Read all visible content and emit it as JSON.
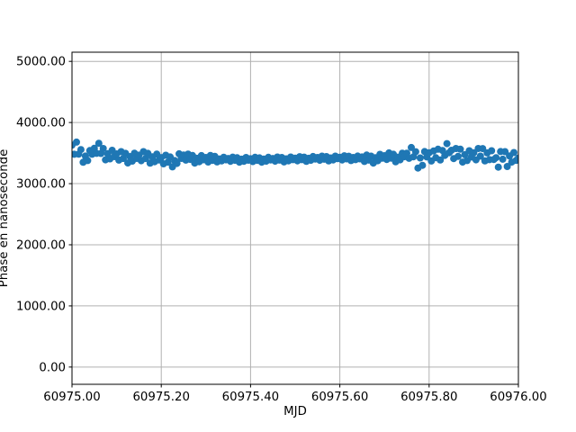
{
  "figure": {
    "background_color": "#ffffff",
    "title": ""
  },
  "chart_data": {
    "type": "scatter",
    "title": "",
    "xlabel": "MJD",
    "ylabel": "Phase en nanoseconde",
    "legend": null,
    "grid": true,
    "grid_color": "#b0b0b0",
    "spine_color": "#000000",
    "marker_color": "#1f77b4",
    "marker_radius_px": 4,
    "xlim": [
      60975.0,
      60976.0
    ],
    "ylim": [
      -282,
      5150
    ],
    "xticks": {
      "values": [
        60975.0,
        60975.2,
        60975.4,
        60975.6,
        60975.8,
        60976.0
      ],
      "labels": [
        "60975.00",
        "60975.20",
        "60975.40",
        "60975.60",
        "60975.80",
        "60976.00"
      ]
    },
    "yticks": {
      "values": [
        0,
        1000,
        2000,
        3000,
        4000,
        5000
      ],
      "labels": [
        "0.00",
        "1000.00",
        "2000.00",
        "3000.00",
        "4000.00",
        "5000.00"
      ]
    },
    "points": {
      "x": [
        60975.0,
        60975.005,
        60975.01,
        60975.015,
        60975.02,
        60975.025,
        60975.03,
        60975.035,
        60975.04,
        60975.045,
        60975.05,
        60975.055,
        60975.06,
        60975.065,
        60975.07,
        60975.075,
        60975.08,
        60975.085,
        60975.09,
        60975.095,
        60975.1,
        60975.105,
        60975.11,
        60975.115,
        60975.12,
        60975.125,
        60975.13,
        60975.135,
        60975.14,
        60975.145,
        60975.15,
        60975.155,
        60975.16,
        60975.165,
        60975.17,
        60975.175,
        60975.18,
        60975.185,
        60975.19,
        60975.195,
        60975.2,
        60975.205,
        60975.21,
        60975.215,
        60975.22,
        60975.225,
        60975.23,
        60975.235,
        60975.24,
        60975.245,
        60975.25,
        60975.255,
        60975.26,
        60975.265,
        60975.27,
        60975.275,
        60975.28,
        60975.285,
        60975.29,
        60975.295,
        60975.3,
        60975.305,
        60975.31,
        60975.315,
        60975.32,
        60975.325,
        60975.33,
        60975.335,
        60975.34,
        60975.345,
        60975.35,
        60975.355,
        60975.36,
        60975.365,
        60975.37,
        60975.375,
        60975.38,
        60975.385,
        60975.39,
        60975.395,
        60975.4,
        60975.405,
        60975.41,
        60975.415,
        60975.42,
        60975.425,
        60975.43,
        60975.435,
        60975.44,
        60975.445,
        60975.45,
        60975.455,
        60975.46,
        60975.465,
        60975.47,
        60975.475,
        60975.48,
        60975.485,
        60975.49,
        60975.495,
        60975.5,
        60975.505,
        60975.51,
        60975.515,
        60975.52,
        60975.525,
        60975.53,
        60975.535,
        60975.54,
        60975.545,
        60975.55,
        60975.555,
        60975.56,
        60975.565,
        60975.57,
        60975.575,
        60975.58,
        60975.585,
        60975.59,
        60975.595,
        60975.6,
        60975.605,
        60975.61,
        60975.615,
        60975.62,
        60975.625,
        60975.63,
        60975.635,
        60975.64,
        60975.645,
        60975.65,
        60975.655,
        60975.66,
        60975.665,
        60975.67,
        60975.675,
        60975.68,
        60975.685,
        60975.69,
        60975.695,
        60975.7,
        60975.705,
        60975.71,
        60975.715,
        60975.72,
        60975.725,
        60975.73,
        60975.735,
        60975.74,
        60975.745,
        60975.75,
        60975.755,
        60975.76,
        60975.765,
        60975.77,
        60975.775,
        60975.78,
        60975.785,
        60975.79,
        60975.795,
        60975.8,
        60975.805,
        60975.81,
        60975.815,
        60975.82,
        60975.825,
        60975.83,
        60975.835,
        60975.84,
        60975.845,
        60975.85,
        60975.855,
        60975.86,
        60975.865,
        60975.87,
        60975.875,
        60975.88,
        60975.885,
        60975.89,
        60975.895,
        60975.9,
        60975.905,
        60975.91,
        60975.915,
        60975.92,
        60975.925,
        60975.93,
        60975.935,
        60975.94,
        60975.945,
        60975.95,
        60975.955,
        60975.96,
        60975.965,
        60975.97,
        60975.975,
        60975.98,
        60975.985,
        60975.99,
        60975.995,
        60976.0
      ],
      "y": [
        3630,
        3480,
        3680,
        3482,
        3557,
        3350,
        3451,
        3377,
        3541,
        3481,
        3579,
        3495,
        3660,
        3494,
        3575,
        3389,
        3490,
        3406,
        3545,
        3442,
        3486,
        3385,
        3524,
        3411,
        3496,
        3338,
        3443,
        3369,
        3498,
        3413,
        3466,
        3375,
        3524,
        3411,
        3496,
        3335,
        3438,
        3359,
        3483,
        3386,
        3426,
        3325,
        3464,
        3351,
        3436,
        3275,
        3378,
        3331,
        3488,
        3413,
        3467,
        3385,
        3483,
        3397,
        3460,
        3337,
        3414,
        3359,
        3459,
        3391,
        3427,
        3354,
        3461,
        3380,
        3447,
        3356,
        3404,
        3371,
        3432,
        3389,
        3412,
        3366,
        3433,
        3382,
        3423,
        3351,
        3400,
        3366,
        3427,
        3384,
        3407,
        3362,
        3430,
        3380,
        3422,
        3351,
        3401,
        3368,
        3430,
        3388,
        3412,
        3367,
        3435,
        3385,
        3427,
        3356,
        3406,
        3373,
        3435,
        3393,
        3417,
        3373,
        3441,
        3392,
        3434,
        3364,
        3414,
        3382,
        3444,
        3403,
        3427,
        3382,
        3450,
        3400,
        3442,
        3371,
        3421,
        3388,
        3450,
        3408,
        3432,
        3388,
        3456,
        3406,
        3448,
        3378,
        3428,
        3393,
        3451,
        3406,
        3437,
        3363,
        3468,
        3385,
        3450,
        3337,
        3424,
        3374,
        3479,
        3416,
        3457,
        3395,
        3503,
        3417,
        3480,
        3357,
        3434,
        3389,
        3499,
        3441,
        3499,
        3415,
        3591,
        3440,
        3522,
        3255,
        3420,
        3300,
        3525,
        3437,
        3505,
        3370,
        3535,
        3425,
        3563,
        3387,
        3543,
        3462,
        3655,
        3505,
        3545,
        3410,
        3575,
        3445,
        3563,
        3352,
        3473,
        3377,
        3538,
        3435,
        3505,
        3390,
        3575,
        3450,
        3573,
        3372,
        3503,
        3392,
        3538,
        3395,
        3425,
        3270,
        3525,
        3400,
        3523,
        3280,
        3453,
        3352,
        3508,
        3380,
        3419
      ]
    }
  }
}
